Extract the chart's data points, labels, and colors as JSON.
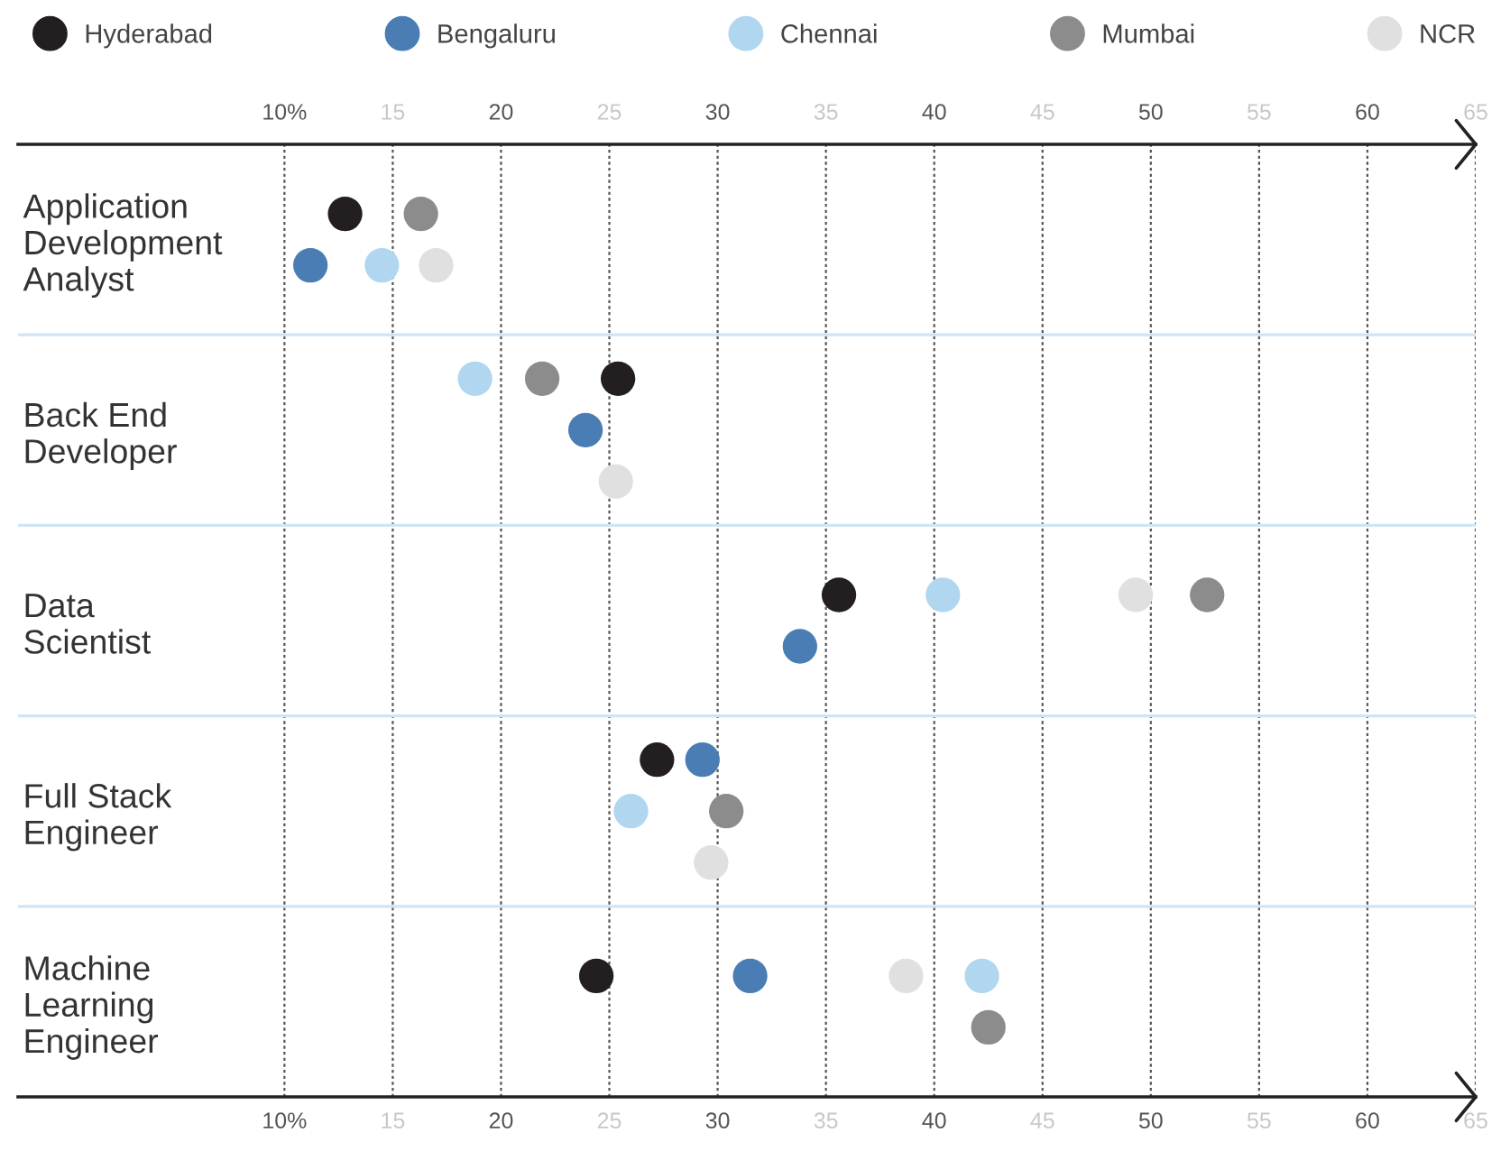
{
  "chart_data": {
    "type": "scatter",
    "orientation": "horizontal",
    "categories": [
      "Application\nDevelopment\nAnalyst",
      "Back End\nDeveloper",
      "Data\nScientist",
      "Full Stack\nEngineer",
      "Machine\nLearning\nEngineer"
    ],
    "series": [
      {
        "name": "Hyderabad",
        "color": "#231f20",
        "values": [
          12.8,
          25.4,
          35.6,
          27.2,
          24.4
        ]
      },
      {
        "name": "Bengaluru",
        "color": "#4a7db3",
        "values": [
          11.2,
          23.9,
          33.8,
          29.3,
          31.5
        ]
      },
      {
        "name": "Chennai",
        "color": "#b0d7ef",
        "values": [
          14.5,
          18.8,
          40.4,
          26.0,
          42.2
        ]
      },
      {
        "name": "Mumbai",
        "color": "#8c8c8c",
        "values": [
          16.3,
          21.9,
          52.6,
          30.4,
          42.5
        ]
      },
      {
        "name": "NCR",
        "color": "#e0e0e0",
        "values": [
          17.0,
          25.3,
          49.3,
          29.7,
          38.7
        ]
      }
    ],
    "xlim": [
      -2.3,
      65
    ],
    "xticks": [
      {
        "value": 10,
        "label": "10%"
      },
      15,
      20,
      25,
      30,
      35,
      40,
      45,
      50,
      55,
      60,
      65
    ],
    "x2lim": [
      -2.3,
      65
    ],
    "x2ticks": [
      {
        "value": 10,
        "label": "10%"
      },
      15,
      20,
      25,
      30,
      35,
      40,
      45,
      50,
      55,
      60,
      65
    ],
    "grid": "x",
    "legend": "top",
    "marker": "circle"
  }
}
